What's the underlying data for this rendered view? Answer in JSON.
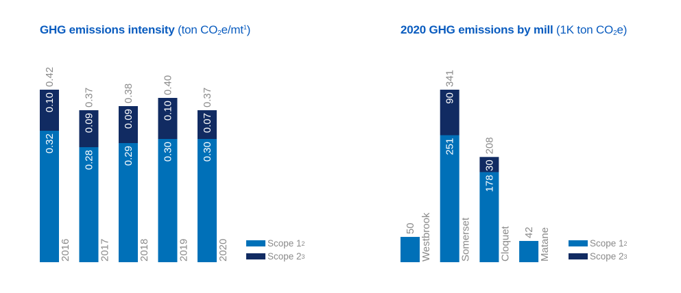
{
  "colors": {
    "scope1": "#0070b8",
    "scope2": "#112b62",
    "title": "#0a5cbf",
    "label": "#8a8a8a",
    "inner_label": "#ffffff"
  },
  "chart_data": [
    {
      "type": "bar",
      "stacked": true,
      "title": "GHG emissions intensity",
      "title_unit_prefix": "(ton CO",
      "title_unit_sub": "2",
      "title_unit_mid": "e/mt",
      "title_unit_sup": "1",
      "title_unit_suffix": ")",
      "categories": [
        "2016",
        "2017",
        "2018",
        "2019",
        "2020"
      ],
      "series": [
        {
          "name": "Scope 1",
          "sup": "2",
          "values": [
            0.32,
            0.28,
            0.29,
            0.3,
            0.3
          ],
          "labels": [
            "0.32",
            "0.28",
            "0.29",
            "0.30",
            "0.30"
          ]
        },
        {
          "name": "Scope 2",
          "sup": "3",
          "values": [
            0.1,
            0.09,
            0.09,
            0.1,
            0.07
          ],
          "labels": [
            "0.10",
            "0.09",
            "0.09",
            "0.10",
            "0.07"
          ]
        }
      ],
      "totals": [
        "0.42",
        "0.37",
        "0.38",
        "0.40",
        "0.37"
      ],
      "xlabel": "",
      "ylabel": "",
      "ylim": [
        0,
        0.42
      ],
      "grid": false,
      "legend": "bottom-right"
    },
    {
      "type": "bar",
      "stacked": true,
      "title": "2020 GHG emissions by mill",
      "title_unit_prefix": "(1K ton CO",
      "title_unit_sub": "2",
      "title_unit_mid": "e",
      "title_unit_sup": "",
      "title_unit_suffix": ")",
      "categories": [
        "Westbrook",
        "Somerset",
        "Cloquet",
        "Matane"
      ],
      "series": [
        {
          "name": "Scope 1",
          "sup": "2",
          "values": [
            50,
            251,
            178,
            42
          ],
          "labels": [
            "",
            "251",
            "178",
            ""
          ]
        },
        {
          "name": "Scope 2",
          "sup": "3",
          "values": [
            0,
            90,
            30,
            0
          ],
          "labels": [
            "",
            "90",
            "30",
            ""
          ]
        }
      ],
      "totals": [
        "50",
        "341",
        "208",
        "42"
      ],
      "xlabel": "",
      "ylabel": "",
      "ylim": [
        0,
        341
      ],
      "grid": false,
      "legend": "bottom-right"
    }
  ]
}
